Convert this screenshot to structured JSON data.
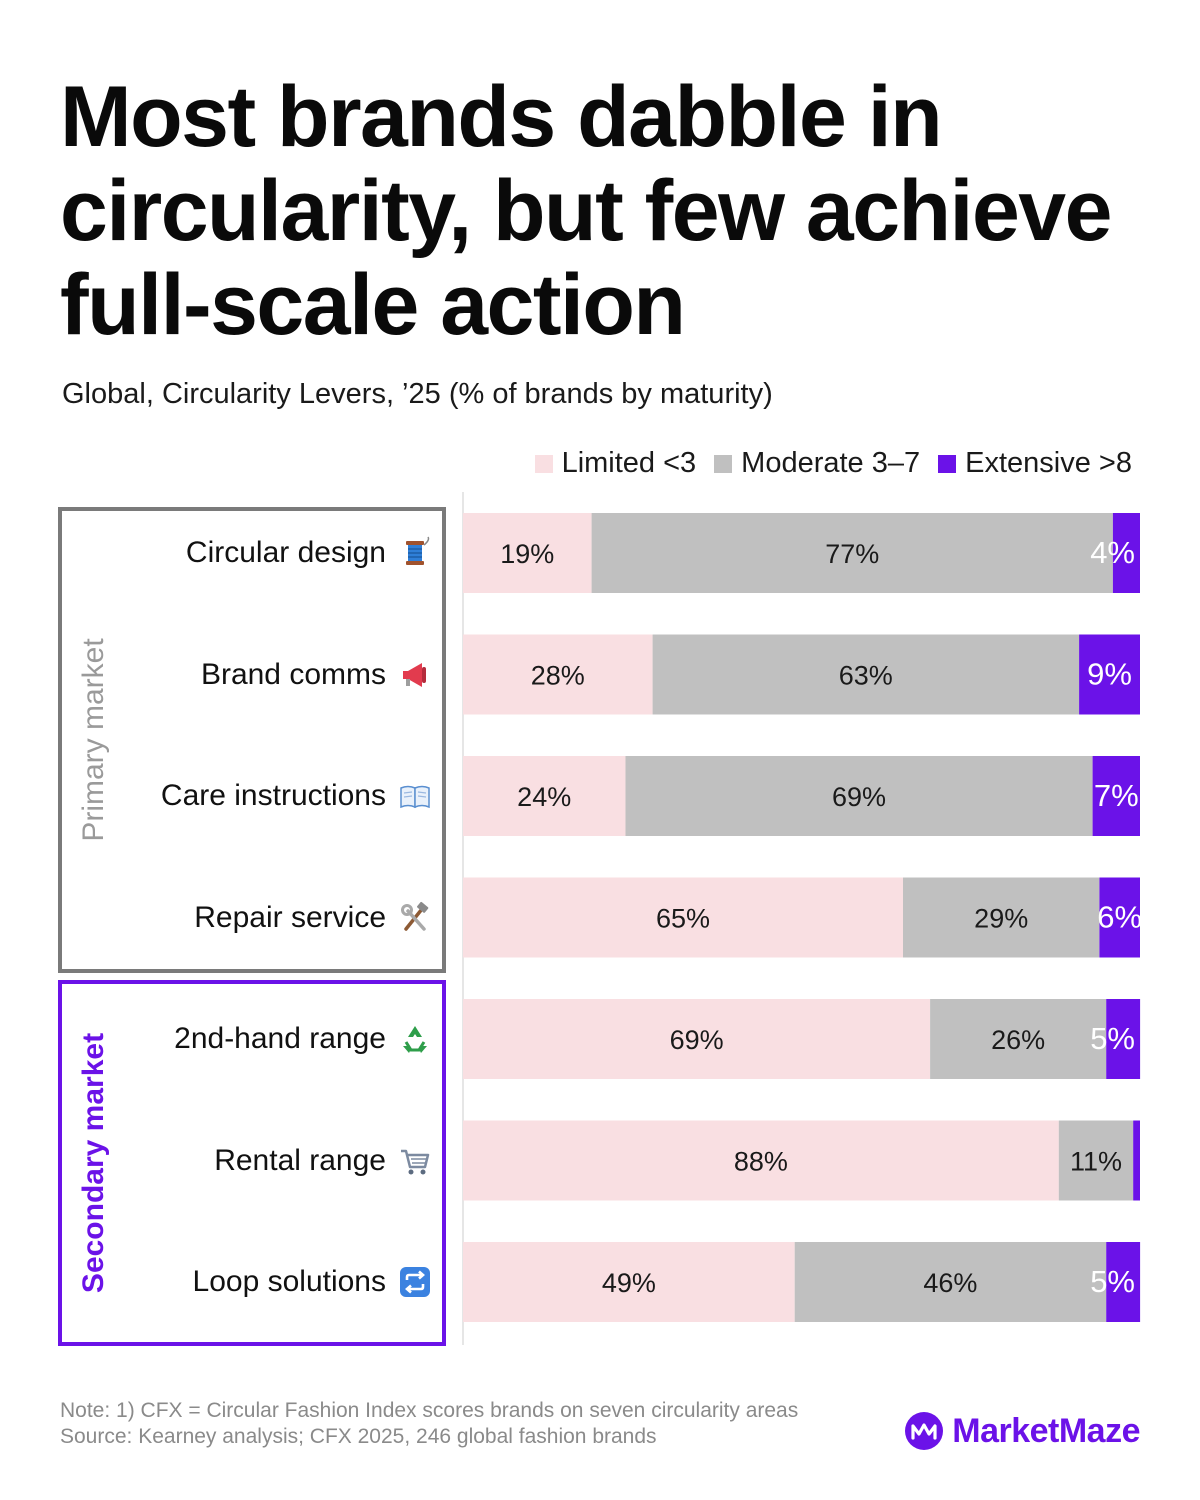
{
  "title": "Most brands dabble in circularity, but few achieve full-scale action",
  "subtitle": "Global, Circularity Levers, ’25 (% of brands by maturity)",
  "colors": {
    "limited": "#f9dfe2",
    "moderate": "#c0c0c0",
    "extensive": "#6b12e8",
    "primary_frame": "#7a7a7a",
    "secondary_frame": "#6b12e8"
  },
  "legend": [
    {
      "label": "Limited <3",
      "color": "#f9dfe2"
    },
    {
      "label": "Moderate 3–7",
      "color": "#c0c0c0"
    },
    {
      "label": "Extensive >8",
      "color": "#6b12e8"
    }
  ],
  "groups": {
    "primary": "Primary market",
    "secondary": "Secondary market"
  },
  "rows": [
    {
      "label": "Circular design",
      "icon": "thread-spool-icon"
    },
    {
      "label": "Brand comms",
      "icon": "megaphone-icon"
    },
    {
      "label": "Care instructions",
      "icon": "open-book-icon"
    },
    {
      "label": "Repair service",
      "icon": "hammer-wrench-icon"
    },
    {
      "label": "2nd-hand range",
      "icon": "recycle-icon"
    },
    {
      "label": "Rental range",
      "icon": "shopping-cart-icon"
    },
    {
      "label": "Loop solutions",
      "icon": "repeat-arrows-icon"
    }
  ],
  "chart_data": {
    "type": "bar",
    "orientation": "horizontal",
    "stacked": true,
    "categories": [
      "Circular design",
      "Brand comms",
      "Care instructions",
      "Repair service",
      "2nd-hand range",
      "Rental range",
      "Loop solutions"
    ],
    "series": [
      {
        "name": "Limited <3",
        "values": [
          19,
          28,
          24,
          65,
          69,
          88,
          49
        ],
        "labels": [
          "19%",
          "28%",
          "24%",
          "65%",
          "69%",
          "88%",
          "49%"
        ]
      },
      {
        "name": "Moderate 3–7",
        "values": [
          77,
          63,
          69,
          29,
          26,
          11,
          46
        ],
        "labels": [
          "77%",
          "63%",
          "69%",
          "29%",
          "26%",
          "11%",
          "46%"
        ]
      },
      {
        "name": "Extensive >8",
        "values": [
          4,
          9,
          7,
          6,
          5,
          1,
          5
        ],
        "labels": [
          "4%",
          "9%",
          "7%",
          "6%",
          "5%",
          "",
          "5%"
        ]
      }
    ],
    "xlim": [
      0,
      100
    ],
    "legend_position": "top-right"
  },
  "footer": {
    "note": "Note: 1) CFX = Circular Fashion Index  scores brands on seven circularity areas",
    "source": "Source: Kearney analysis; CFX 2025, 246 global fashion brands"
  },
  "brand": {
    "name": "MarketMaze",
    "icon": "marketmaze-logo-icon"
  }
}
